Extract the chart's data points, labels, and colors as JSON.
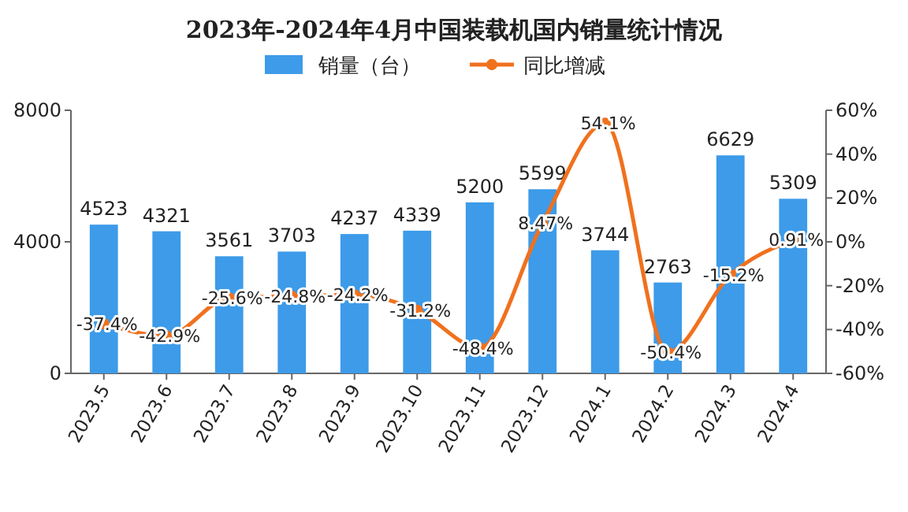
{
  "chart_data": {
    "type": "bar",
    "title": "2023年-2024年4月中国装载机国内销量统计情况",
    "categories": [
      "2023.5",
      "2023.6",
      "2023.7",
      "2023.8",
      "2023.9",
      "2023.10",
      "2023.11",
      "2023.12",
      "2024.1",
      "2024.2",
      "2024.3",
      "2024.4"
    ],
    "series": [
      {
        "name": "销量（台）",
        "color": "#3d9be9",
        "values": [
          4523,
          4321,
          3561,
          3703,
          4237,
          4339,
          5200,
          5599,
          3744,
          2763,
          6629,
          5309
        ],
        "value_labels": [
          "4523",
          "4321",
          "3561",
          "3703",
          "4237",
          "4339",
          "5200",
          "5599",
          "3744",
          "2763",
          "6629",
          "5309"
        ]
      },
      {
        "name": "同比增减",
        "type": "line",
        "axis": "y2",
        "color": "#f0711e",
        "values": [
          -37.4,
          -42.9,
          -25.6,
          -24.8,
          -24.2,
          -31.2,
          -48.4,
          8.47,
          54.1,
          -50.4,
          -15.2,
          0.91
        ],
        "value_labels": [
          "-37.4%",
          "-42.9%",
          "-25.6%",
          "-24.8%",
          "-24.2%",
          "-31.2%",
          "-48.4%",
          "8.47%",
          "54.1%",
          "-50.4%",
          "-15.2%",
          "0.91%"
        ]
      }
    ],
    "ylim": [
      0,
      8000
    ],
    "yticks": [
      0,
      4000,
      8000
    ],
    "y2lim": [
      -60,
      60
    ],
    "y2ticks": [
      {
        "value": -60,
        "label": "-60%"
      },
      {
        "value": -40,
        "label": "-40%"
      },
      {
        "value": -20,
        "label": "-20%"
      },
      {
        "value": 0,
        "label": "0%"
      },
      {
        "value": 20,
        "label": "20%"
      },
      {
        "value": 40,
        "label": "40%"
      },
      {
        "value": 60,
        "label": "60%"
      }
    ],
    "legend": "top",
    "marker": "circle",
    "grid": false
  }
}
